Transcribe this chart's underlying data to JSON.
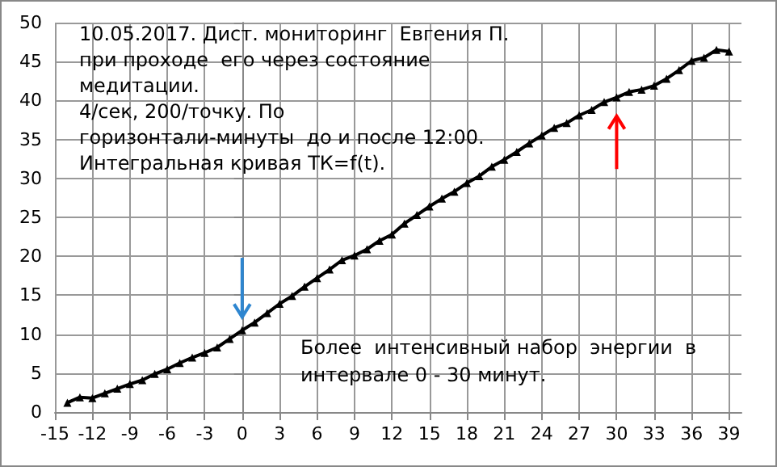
{
  "chart_data": {
    "type": "line",
    "annotations": [
      "10.05.2017. Дист. мониторинг  Евгения П.",
      "при проходе  его через состояние",
      "медитации.",
      "4/сек, 200/точку. По",
      "горизонтали-минуты  до и после 12:00.",
      "Интегральная кривая ТК=f(t).",
      "Более  интенсивный набор  энергии  в",
      "интервале 0 - 30 минут."
    ],
    "x": [
      -14,
      -13,
      -12,
      -11,
      -10,
      -9,
      -8,
      -7,
      -6,
      -5,
      -4,
      -3,
      -2,
      -1,
      0,
      1,
      2,
      3,
      4,
      5,
      6,
      7,
      8,
      9,
      10,
      11,
      12,
      13,
      14,
      15,
      16,
      17,
      18,
      19,
      20,
      21,
      22,
      23,
      24,
      25,
      26,
      27,
      28,
      29,
      30,
      31,
      32,
      33,
      34,
      35,
      36,
      37,
      38,
      39
    ],
    "series": [
      {
        "color": "#000000",
        "values": [
          1.2,
          1.9,
          1.8,
          2.4,
          3.0,
          3.6,
          4.1,
          4.9,
          5.5,
          6.3,
          7.0,
          7.6,
          8.3,
          9.4,
          10.5,
          11.5,
          12.7,
          13.9,
          14.9,
          16.1,
          17.2,
          18.3,
          19.5,
          20.1,
          20.9,
          22.0,
          22.8,
          24.2,
          25.3,
          26.4,
          27.4,
          28.3,
          29.4,
          30.3,
          31.5,
          32.4,
          33.4,
          34.5,
          35.5,
          36.5,
          37.1,
          38.1,
          38.8,
          39.8,
          40.4,
          41.1,
          41.4,
          41.9,
          42.8,
          43.9,
          45.1,
          45.5,
          46.5,
          46.3
        ]
      }
    ],
    "xlim": [
      -15,
      40
    ],
    "xticks": [
      -15,
      -12,
      -9,
      -6,
      -3,
      0,
      3,
      6,
      9,
      12,
      15,
      18,
      21,
      24,
      27,
      30,
      33,
      36,
      39
    ],
    "ylim": [
      0,
      50
    ],
    "yticks": [
      0,
      5,
      10,
      15,
      20,
      25,
      30,
      35,
      40,
      45,
      50
    ],
    "grid": true,
    "marker": "triangle",
    "line_style": "solid"
  }
}
